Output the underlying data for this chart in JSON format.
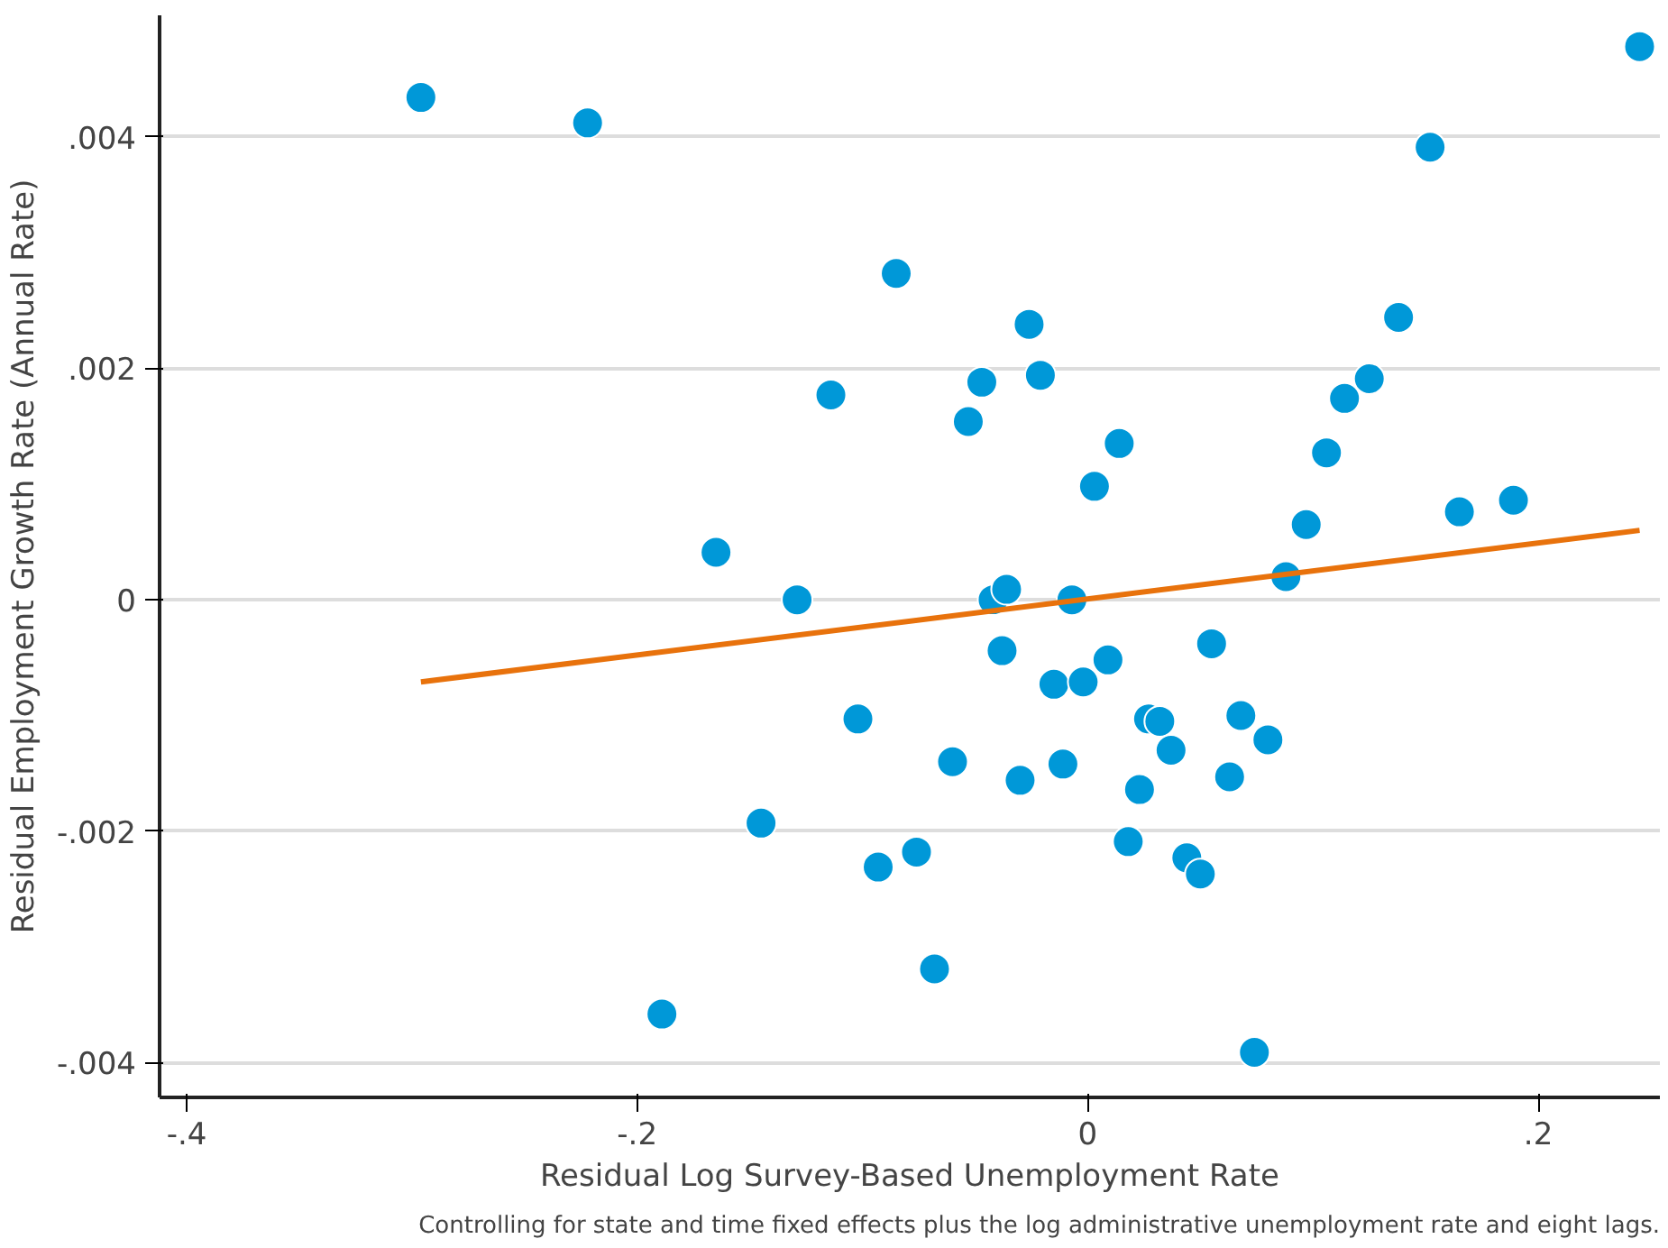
{
  "chart_data": {
    "type": "scatter",
    "xlabel": "Residual Log Survey-Based Unemployment Rate",
    "ylabel": "Residual Employment Growth Rate (Annual Rate)",
    "annotations": [
      "Controlling for state and time fixed effects plus the log administrative unemployment rate and eight lags."
    ],
    "xlim": [
      -0.412,
      0.254
    ],
    "ylim": [
      -0.0043,
      0.00505
    ],
    "xticks": [
      {
        "value": -0.4,
        "label": "-.4"
      },
      {
        "value": -0.2,
        "label": "-.2"
      },
      {
        "value": 0,
        "label": "0"
      },
      {
        "value": 0.2,
        "label": ".2"
      }
    ],
    "yticks": [
      {
        "value": -0.004,
        "label": "-.004"
      },
      {
        "value": -0.002,
        "label": "-.002"
      },
      {
        "value": 0,
        "label": "0"
      },
      {
        "value": 0.002,
        "label": ".002"
      },
      {
        "value": 0.004,
        "label": ".004"
      }
    ],
    "grid": "y",
    "marker": "circle",
    "series": [
      {
        "color": "#0098d8",
        "x": [
          -0.296,
          -0.222,
          -0.085,
          -0.026,
          -0.021,
          -0.047,
          -0.114,
          -0.053,
          0.014,
          0.003,
          -0.165,
          -0.129,
          -0.042,
          -0.036,
          -0.007,
          -0.038,
          0.009,
          -0.015,
          -0.002,
          0.055,
          -0.102,
          0.027,
          0.032,
          0.068,
          0.037,
          0.08,
          -0.06,
          -0.011,
          -0.03,
          0.023,
          0.063,
          -0.145,
          0.018,
          -0.076,
          -0.093,
          0.044,
          0.05,
          -0.068,
          -0.189,
          0.074,
          0.088,
          0.097,
          0.106,
          0.114,
          0.125,
          0.138,
          0.152,
          0.165,
          0.189,
          0.245
        ],
        "values": [
          0.00434,
          0.00412,
          0.00282,
          0.00238,
          0.00194,
          0.00188,
          0.00177,
          0.00154,
          0.00135,
          0.00098,
          0.00041,
          0.0,
          0.0,
          9e-05,
          0.0,
          -0.00044,
          -0.00052,
          -0.00073,
          -0.00071,
          -0.00038,
          -0.00103,
          -0.00103,
          -0.00105,
          -0.001,
          -0.0013,
          -0.00121,
          -0.0014,
          -0.00142,
          -0.00156,
          -0.00164,
          -0.00153,
          -0.00193,
          -0.00209,
          -0.00218,
          -0.00231,
          -0.00223,
          -0.00237,
          -0.00319,
          -0.00358,
          -0.00391,
          0.0002,
          0.00065,
          0.00127,
          0.00174,
          0.00191,
          0.00244,
          0.00391,
          0.00076,
          0.00086,
          0.00478
        ]
      },
      {
        "type": "line",
        "marker": "none",
        "color": "#e8720c",
        "x": [
          -0.296,
          0.245
        ],
        "values": [
          -0.00071,
          0.0006
        ]
      }
    ]
  }
}
